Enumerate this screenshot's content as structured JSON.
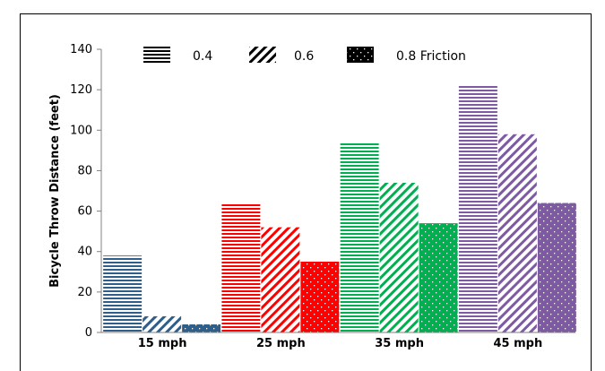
{
  "chart_data": {
    "type": "bar",
    "title": "",
    "xlabel": "",
    "ylabel": "Bicycle Throw Distance (feet)",
    "ylim": [
      0,
      140
    ],
    "yticks": [
      0,
      20,
      40,
      60,
      80,
      100,
      120,
      140
    ],
    "grid": false,
    "legend_position": "top",
    "categories": [
      "15 mph",
      "25 mph",
      "35 mph",
      "45 mph"
    ],
    "category_colors": [
      "#2E5F8A",
      "#FF0000",
      "#00B050",
      "#7E5AA2"
    ],
    "series": [
      {
        "name": "0.4",
        "pattern": "horizontal-lines",
        "values": [
          38,
          64,
          94,
          122
        ]
      },
      {
        "name": "0.6",
        "pattern": "diagonal-lines",
        "values": [
          8,
          52,
          74,
          98
        ]
      },
      {
        "name": "0.8 Friction",
        "pattern": "dots",
        "values": [
          4,
          35,
          54,
          64
        ]
      }
    ]
  }
}
